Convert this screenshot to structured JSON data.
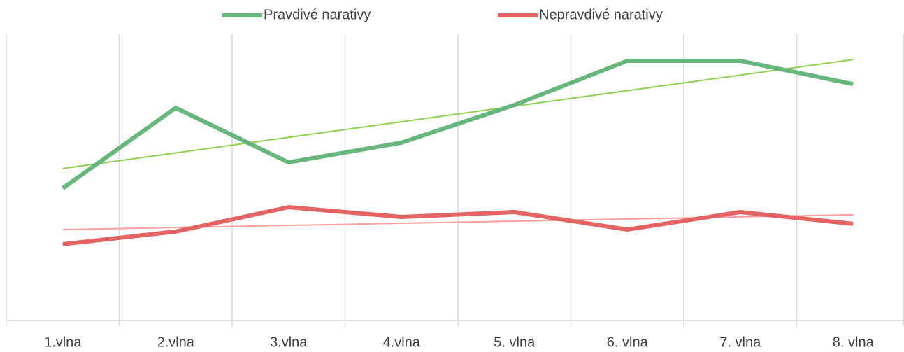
{
  "chart_data": {
    "type": "line",
    "categories": [
      "1.vlna",
      "2.vlna",
      "3.vlna",
      "4.vlna",
      "5. vlna",
      "6. vlna",
      "7. vlna",
      "8. vlna"
    ],
    "series": [
      {
        "name": "Pravdivé narativy",
        "color": "#66b77c",
        "trend_color": "#92d050",
        "values": [
          46.1,
          74.1,
          55.1,
          62.0,
          75.1,
          90.5,
          90.5,
          82.4
        ]
      },
      {
        "name": "Nepravdivé narativy",
        "color": "#e46464",
        "trend_color": "#ff9f9f",
        "values": [
          26.6,
          31.0,
          39.5,
          36.1,
          37.8,
          31.7,
          37.8,
          33.7
        ]
      }
    ],
    "ylim": [
      0,
      100
    ],
    "trendline": true,
    "legend": "top",
    "grid": true
  }
}
